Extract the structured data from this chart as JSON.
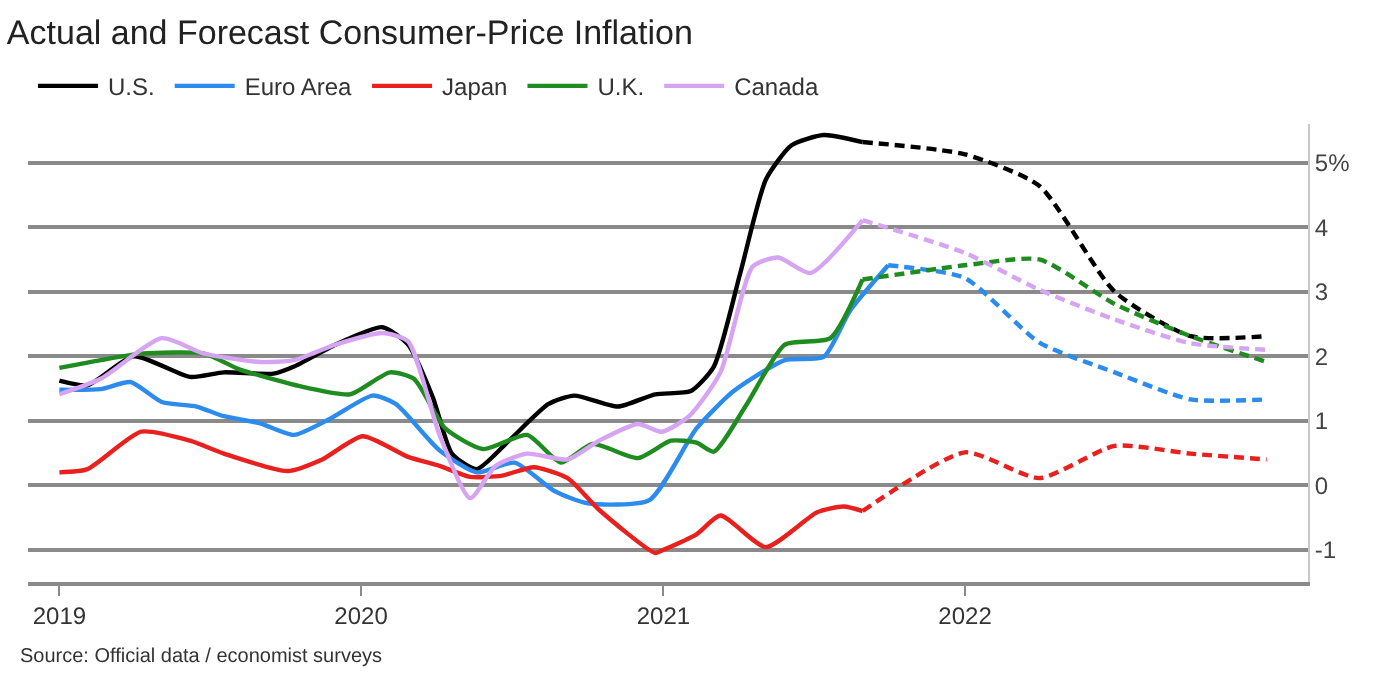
{
  "chart_data": {
    "type": "line",
    "title": "Actual and Forecast Consumer-Price Inflation",
    "annotations": [
      "Source: Official data / economist surveys"
    ],
    "xlim": [
      "2018-11-24",
      "2023-02-20"
    ],
    "xticks": [
      "2019",
      "2020",
      "2021",
      "2022"
    ],
    "ylim": [
      -1.5,
      5.6
    ],
    "yticks": [
      -1,
      0,
      1,
      2,
      3,
      {
        "value": 4,
        "label": "4"
      },
      {
        "value": 5,
        "label": "5%"
      }
    ],
    "grid": "y",
    "legend": "top left",
    "line_style": "solid",
    "marker": "none",
    "series": [
      {
        "name": "U.S.",
        "color": "#000000",
        "x": [
          "2019-01-01",
          "2019-02-04",
          "2019-04-01",
          "2019-06-08",
          "2019-07-19",
          "2019-09-17",
          "2019-10-12",
          "2019-12-01",
          "2020-01-27",
          "2020-02-27",
          "2020-03-28",
          "2020-04-20",
          "2020-05-20",
          "2020-06-28",
          "2020-08-15",
          "2020-09-15",
          "2020-11-07",
          "2020-12-22",
          "2021-02-03",
          "2021-03-03",
          "2021-04-04",
          "2021-05-05",
          "2021-06-05",
          "2021-07-14",
          "2021-08-30"
        ],
        "values": [
          1.62,
          1.55,
          2.0,
          1.68,
          1.75,
          1.73,
          1.84,
          2.18,
          2.45,
          2.18,
          1.36,
          0.49,
          0.25,
          0.69,
          1.26,
          1.39,
          1.22,
          1.41,
          1.46,
          1.84,
          3.29,
          4.74,
          5.27,
          5.43,
          5.32
        ]
      },
      {
        "color": "#000000",
        "line_style": "dashed",
        "x": [
          "2021-08-30",
          "2022-01-01",
          "2022-04-01",
          "2022-07-01",
          "2022-10-01",
          "2023-01-01"
        ],
        "values": [
          5.32,
          5.13,
          4.64,
          3.0,
          2.31,
          2.31
        ]
      },
      {
        "name": "Euro Area",
        "color": "#2b8cee",
        "x": [
          "2019-01-01",
          "2019-02-20",
          "2019-03-28",
          "2019-05-05",
          "2019-06-16",
          "2019-07-19",
          "2019-09-01",
          "2019-10-12",
          "2019-11-23",
          "2020-01-15",
          "2020-02-12",
          "2020-04-05",
          "2020-05-20",
          "2020-07-05",
          "2020-08-22",
          "2020-10-01",
          "2020-12-15",
          "2021-02-10",
          "2021-03-27",
          "2021-05-28",
          "2021-07-14",
          "2021-08-15",
          "2021-09-30"
        ],
        "values": [
          1.48,
          1.49,
          1.6,
          1.29,
          1.22,
          1.07,
          0.96,
          0.78,
          1.02,
          1.39,
          1.26,
          0.54,
          0.2,
          0.35,
          -0.09,
          -0.28,
          -0.23,
          0.88,
          1.46,
          1.94,
          1.99,
          2.71,
          3.41
        ]
      },
      {
        "color": "#2b8cee",
        "line_style": "dashed",
        "x": [
          "2021-09-30",
          "2022-01-01",
          "2022-04-01",
          "2022-07-01",
          "2022-10-01",
          "2023-01-01"
        ],
        "values": [
          3.41,
          3.21,
          2.21,
          1.75,
          1.33,
          1.33
        ]
      },
      {
        "name": "Japan",
        "color": "#e8201e",
        "x": [
          "2019-01-01",
          "2019-02-04",
          "2019-04-10",
          "2019-06-08",
          "2019-07-19",
          "2019-10-04",
          "2019-11-15",
          "2020-01-03",
          "2020-02-27",
          "2020-04-05",
          "2020-05-12",
          "2020-06-20",
          "2020-07-28",
          "2020-09-07",
          "2020-10-15",
          "2020-12-22",
          "2021-01-01",
          "2021-02-10",
          "2021-03-11",
          "2021-05-05",
          "2021-07-06",
          "2021-08-07",
          "2021-08-30"
        ],
        "values": [
          0.2,
          0.25,
          0.83,
          0.69,
          0.49,
          0.22,
          0.4,
          0.76,
          0.44,
          0.3,
          0.13,
          0.15,
          0.28,
          0.11,
          -0.38,
          -1.05,
          -1.0,
          -0.76,
          -0.47,
          -0.96,
          -0.42,
          -0.33,
          -0.4
        ]
      },
      {
        "color": "#e8201e",
        "line_style": "dashed",
        "x": [
          "2021-08-30",
          "2022-01-01",
          "2022-04-01",
          "2022-07-01",
          "2022-10-01",
          "2023-01-01"
        ],
        "values": [
          -0.4,
          0.51,
          0.11,
          0.61,
          0.49,
          0.4
        ]
      },
      {
        "name": "U.K.",
        "color": "#1e8c1e",
        "x": [
          "2019-01-01",
          "2019-02-20",
          "2019-04-10",
          "2019-06-25",
          "2019-08-06",
          "2019-09-01",
          "2019-10-28",
          "2019-12-19",
          "2020-02-05",
          "2020-03-05",
          "2020-04-12",
          "2020-05-28",
          "2020-07-20",
          "2020-08-30",
          "2020-10-07",
          "2020-12-01",
          "2021-01-10",
          "2021-02-10",
          "2021-03-03",
          "2021-04-12",
          "2021-05-28",
          "2021-07-22",
          "2021-08-30"
        ],
        "values": [
          1.82,
          1.94,
          2.04,
          2.04,
          1.8,
          1.7,
          1.51,
          1.41,
          1.75,
          1.65,
          0.88,
          0.56,
          0.78,
          0.35,
          0.64,
          0.42,
          0.69,
          0.66,
          0.52,
          1.26,
          2.18,
          2.28,
          3.19
        ]
      },
      {
        "color": "#1e8c1e",
        "line_style": "dashed",
        "x": [
          "2021-08-30",
          "2022-01-01",
          "2022-04-01",
          "2022-07-01",
          "2022-10-01",
          "2023-01-01"
        ],
        "values": [
          3.19,
          3.41,
          3.5,
          2.81,
          2.31,
          1.91
        ]
      },
      {
        "name": "Canada",
        "color": "#d6a4f2",
        "x": [
          "2019-01-01",
          "2019-02-20",
          "2019-05-05",
          "2019-06-25",
          "2019-09-01",
          "2019-10-12",
          "2019-12-01",
          "2020-01-27",
          "2020-02-27",
          "2020-04-05",
          "2020-05-12",
          "2020-06-12",
          "2020-07-20",
          "2020-09-07",
          "2020-10-15",
          "2020-12-01",
          "2020-12-30",
          "2021-02-01",
          "2021-03-11",
          "2021-04-19",
          "2021-05-20",
          "2021-06-28",
          "2021-08-30"
        ],
        "values": [
          1.41,
          1.65,
          2.28,
          2.04,
          1.91,
          1.94,
          2.18,
          2.36,
          2.23,
          0.78,
          -0.2,
          0.3,
          0.49,
          0.4,
          0.69,
          0.95,
          0.83,
          1.07,
          1.75,
          3.39,
          3.53,
          3.29,
          4.11
        ]
      },
      {
        "color": "#d6a4f2",
        "line_style": "dashed",
        "x": [
          "2021-08-30",
          "2022-01-01",
          "2022-04-01",
          "2022-07-01",
          "2022-10-01",
          "2023-01-01"
        ],
        "values": [
          4.11,
          3.6,
          3.03,
          2.57,
          2.2,
          2.1
        ]
      }
    ]
  }
}
